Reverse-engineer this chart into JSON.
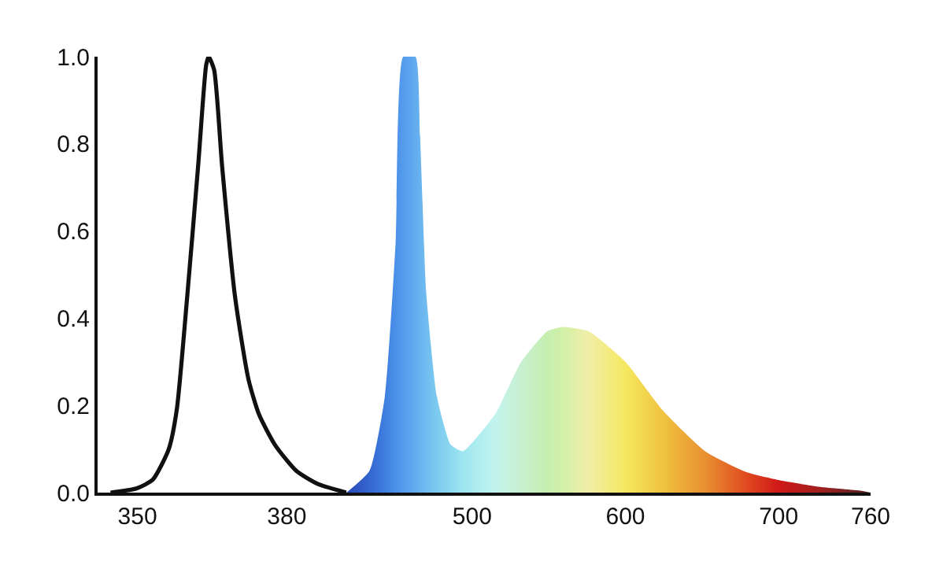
{
  "chart_data": [
    {
      "type": "line",
      "xlim": [
        342,
        392
      ],
      "xticks": [
        350,
        380
      ],
      "ylim": [
        0,
        1
      ],
      "yticks": [
        {
          "value": 0,
          "label": "0.0"
        },
        0.2,
        0.4,
        0.6,
        0.8,
        {
          "value": 1,
          "label": "1.0"
        }
      ],
      "marker": "none",
      "line_style": "solid",
      "x": [
        344.6,
        349.9,
        353.1,
        356.3,
        357.9,
        360.0,
        362.2,
        363.8,
        364.3,
        365.4,
        367.0,
        369.6,
        372.3,
        374.4,
        377.6,
        381.9,
        386.2,
        392.0
      ],
      "series": [
        {
          "color": "#111111",
          "values": [
            0,
            0.01,
            0.03,
            0.1,
            0.19,
            0.45,
            0.75,
            0.98,
            1.0,
            0.97,
            0.75,
            0.45,
            0.26,
            0.18,
            0.11,
            0.05,
            0.02,
            0
          ]
        }
      ]
    },
    {
      "type": "area",
      "xlim": [
        418,
        760
      ],
      "xticks": [
        500,
        600,
        700,
        760
      ],
      "ylim": [
        0,
        1
      ],
      "tick_labels": "x",
      "x": [
        418,
        433,
        443,
        450,
        455,
        463,
        466,
        470,
        477,
        486,
        494,
        515,
        532,
        549,
        559,
        576,
        600,
        624,
        652,
        679,
        700,
        727,
        754,
        760
      ],
      "series": [
        {
          "values": [
            0,
            0.05,
            0.22,
            0.57,
            1.0,
            1.0,
            0.82,
            0.46,
            0.22,
            0.11,
            0.095,
            0.18,
            0.3,
            0.37,
            0.38,
            0.37,
            0.3,
            0.19,
            0.095,
            0.047,
            0.029,
            0.013,
            0.004,
            0
          ],
          "colors": [
            "#2a48b8",
            "#3566d0",
            "#3f7fe0",
            "#4a90e8",
            "#559ced",
            "#62acef",
            "#68b3ef",
            "#70bcf0",
            "#7ccaf0",
            "#8cd8f0",
            "#9ee6f0",
            "#c2f4ee",
            "#c8f0d0",
            "#c6eeb0",
            "#d2f0a8",
            "#f2eea8",
            "#f5e860",
            "#f0c440",
            "#e89030",
            "#e04a20",
            "#d01818",
            "#a02020",
            "#602020",
            "#502020"
          ]
        }
      ]
    }
  ]
}
